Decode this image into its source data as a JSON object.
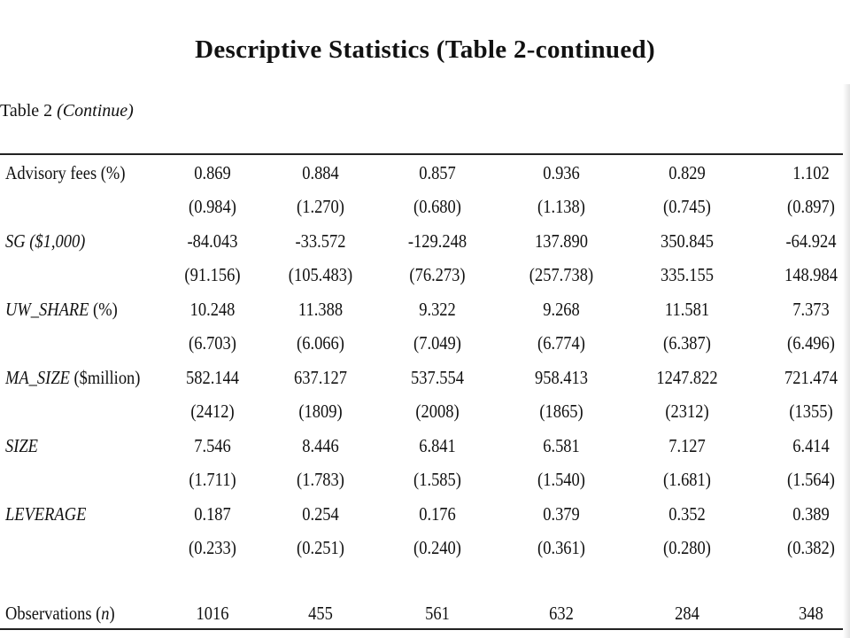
{
  "title": "Descriptive Statistics (Table 2-continued)",
  "table_label": {
    "prefix": "Table 2 ",
    "italic": "(Continue)"
  },
  "rows": [
    {
      "label_italic": "",
      "label_plain": "Advisory fees (%)",
      "means": [
        "0.869",
        "0.884",
        "0.857",
        "0.936",
        "0.829",
        "1.102"
      ],
      "sds": [
        "(0.984)",
        "(1.270)",
        "(0.680)",
        "(1.138)",
        "(0.745)",
        "(0.897)"
      ]
    },
    {
      "label_italic": "SG ($1,000)",
      "label_plain": "",
      "means": [
        "-84.043",
        "-33.572",
        "-129.248",
        "137.890",
        "350.845",
        "-64.924"
      ],
      "sds": [
        "(91.156)",
        "(105.483)",
        "(76.273)",
        "(257.738)",
        "335.155",
        "148.984"
      ]
    },
    {
      "label_italic": "UW_SHARE",
      "label_plain": " (%)",
      "means": [
        "10.248",
        "11.388",
        "9.322",
        "9.268",
        "11.581",
        "7.373"
      ],
      "sds": [
        "(6.703)",
        "(6.066)",
        "(7.049)",
        "(6.774)",
        "(6.387)",
        "(6.496)"
      ]
    },
    {
      "label_italic": "MA_SIZE",
      "label_plain": " ($million)",
      "means": [
        "582.144",
        "637.127",
        "537.554",
        "958.413",
        "1247.822",
        "721.474"
      ],
      "sds": [
        "(2412)",
        "(1809)",
        "(2008)",
        "(1865)",
        "(2312)",
        "(1355)"
      ]
    },
    {
      "label_italic": "SIZE",
      "label_plain": "",
      "means": [
        "7.546",
        "8.446",
        "6.841",
        "6.581",
        "7.127",
        "6.414"
      ],
      "sds": [
        "(1.711)",
        "(1.783)",
        "(1.585)",
        "(1.540)",
        "(1.681)",
        "(1.564)"
      ]
    },
    {
      "label_italic": "LEVERAGE",
      "label_plain": "",
      "means": [
        "0.187",
        "0.254",
        "0.176",
        "0.379",
        "0.352",
        "0.389"
      ],
      "sds": [
        "(0.233)",
        "(0.251)",
        "(0.240)",
        "(0.361)",
        "(0.280)",
        "(0.382)"
      ]
    }
  ],
  "observations": {
    "label_plain": "Observations (",
    "label_italic": "n",
    "label_close": ")",
    "values": [
      "1016",
      "455",
      "561",
      "632",
      "284",
      "348"
    ]
  }
}
